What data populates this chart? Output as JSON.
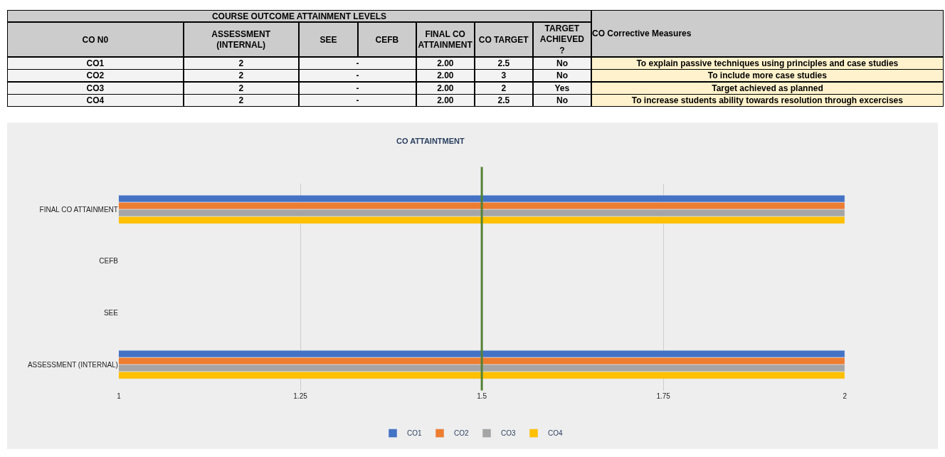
{
  "chart_data": [
    {
      "type": "other",
      "title": "COURSE OUTCOME ATTAINMENT LEVELS",
      "categories": [
        "CO N0",
        "ASSESSMENT (INTERNAL)",
        "SEE",
        "CEFB",
        "FINAL CO ATTAINMENT",
        "CO TARGET",
        "TARGET ACHIEVED ?",
        "CO Corrective Measures"
      ],
      "cells": [
        [
          "CO1",
          "2",
          "-",
          null,
          "2.00",
          "2.5",
          "No",
          "To explain passive techniques using principles and case studies"
        ],
        [
          "CO2",
          "2",
          "-",
          null,
          "2.00",
          "3",
          "No",
          "To include more case studies"
        ],
        [
          "CO3",
          "2",
          "-",
          null,
          "2.00",
          "2",
          "Yes",
          "Target achieved as planned"
        ],
        [
          "CO4",
          "2",
          "-",
          null,
          "2.00",
          "2.5",
          "No",
          "To increase students ability towards resolution through excercises"
        ]
      ]
    },
    {
      "type": "bar",
      "orientation": "horizontal",
      "title": "CO ATTAINTMENT",
      "categories": [
        "FINAL CO ATTAINMENT",
        "CEFB",
        "SEE",
        "ASSESSMENT (INTERNAL)"
      ],
      "series": [
        {
          "name": "CO1",
          "color": "#4472c4",
          "values": [
            2,
            null,
            null,
            2
          ]
        },
        {
          "name": "CO2",
          "color": "#ed7d31",
          "values": [
            2,
            null,
            null,
            2
          ]
        },
        {
          "name": "CO3",
          "color": "#a5a5a5",
          "values": [
            2,
            null,
            null,
            2
          ]
        },
        {
          "name": "CO4",
          "color": "#ffc000",
          "values": [
            2,
            null,
            null,
            2
          ]
        }
      ],
      "xlim": [
        1,
        2
      ],
      "xticks": [
        1,
        1.25,
        1.5,
        1.75,
        2
      ],
      "grid": "x",
      "legend": "bottom",
      "ref_lines": [
        {
          "axis": "x",
          "value": 1.5,
          "label": null,
          "color": "#548235"
        }
      ]
    }
  ]
}
